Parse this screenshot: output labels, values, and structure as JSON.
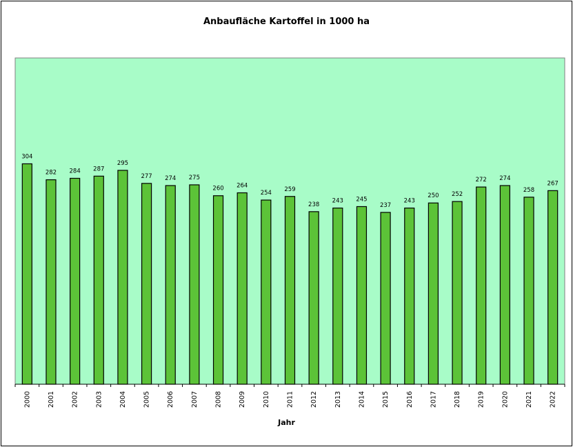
{
  "chart_data": {
    "type": "bar",
    "title": "Anbaufläche Kartoffel in 1000 ha",
    "xlabel": "Jahr",
    "ylabel": "",
    "categories": [
      "2000",
      "2001",
      "2002",
      "2003",
      "2004",
      "2005",
      "2006",
      "2007",
      "2008",
      "2009",
      "2010",
      "2011",
      "2012",
      "2013",
      "2014",
      "2015",
      "2016",
      "2017",
      "2018",
      "2019",
      "2020",
      "2021",
      "2022"
    ],
    "values": [
      304,
      282,
      284,
      287,
      295,
      277,
      274,
      275,
      260,
      264,
      254,
      259,
      238,
      243,
      245,
      237,
      243,
      250,
      252,
      272,
      274,
      258,
      267
    ],
    "ylim": [
      0,
      450
    ],
    "grid": false,
    "legend": "none",
    "colors": {
      "plot_background": "#a8fcc8",
      "bar_fill": "#5cc338",
      "bar_stroke": "#000000"
    }
  }
}
